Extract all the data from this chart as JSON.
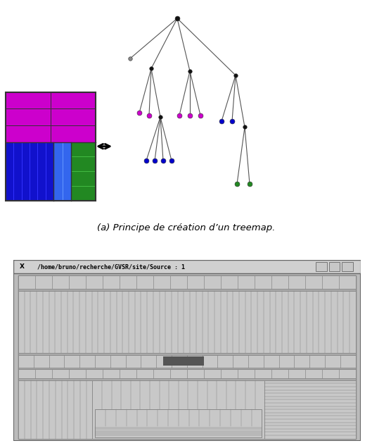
{
  "subtitle": "(a) Principe de création d’un treemap.",
  "bg_color": "#ffffff",
  "window_title": "/home/bruno/recherche/GVSR/site/Source : 1",
  "window_border": "#888888",
  "dark_rect_color": "#555555",
  "pink_color": "#cc00cc",
  "blue_dark_color": "#1111cc",
  "blue_light_color": "#3366ee",
  "green_color": "#228822"
}
